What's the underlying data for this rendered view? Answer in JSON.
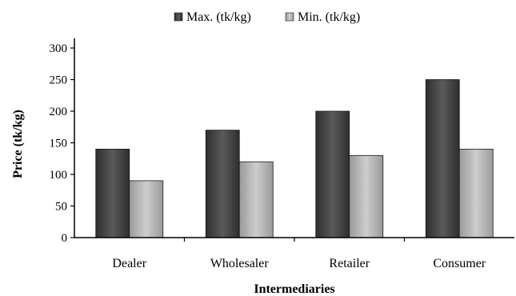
{
  "chart_data": {
    "type": "bar",
    "title": "",
    "xlabel": "Intermediaries",
    "ylabel": "Price (tk/kg)",
    "categories": [
      "Dealer",
      "Wholesaler",
      "Retailer",
      "Consumer"
    ],
    "series": [
      {
        "name": "Max. (tk/kg)",
        "values": [
          140,
          170,
          200,
          250
        ],
        "color": "#4d4d4d"
      },
      {
        "name": "Min. (tk/kg)",
        "values": [
          90,
          120,
          130,
          140
        ],
        "color": "#b5b5b5"
      }
    ],
    "ylim": [
      0,
      300
    ],
    "yticks": [
      0,
      50,
      100,
      150,
      200,
      250,
      300
    ],
    "grid": false,
    "legend": "top-center"
  }
}
